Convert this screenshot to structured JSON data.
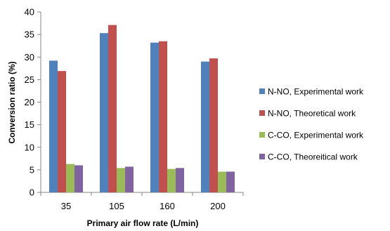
{
  "chart_data": {
    "type": "bar",
    "categories": [
      "35",
      "105",
      "160",
      "200"
    ],
    "series": [
      {
        "name": "N-NO, Experimental work",
        "color": "#4F81BD",
        "values": [
          29.2,
          35.3,
          33.2,
          29.0
        ]
      },
      {
        "name": "N-NO, Theoretical work",
        "color": "#C0504D",
        "values": [
          26.9,
          37.1,
          33.5,
          29.7
        ]
      },
      {
        "name": "C-CO, Experimental work",
        "color": "#9BBB59",
        "values": [
          6.3,
          5.4,
          5.2,
          4.6
        ]
      },
      {
        "name": "C-CO, Theoreitical work",
        "color": "#8064A2",
        "values": [
          6.0,
          5.7,
          5.4,
          4.6
        ]
      }
    ],
    "title": "",
    "xlabel": "Primary air flow rate (L/min)",
    "ylabel": "Conversion ratio (%)",
    "ylim": [
      0,
      40
    ],
    "yticks": [
      0,
      5,
      10,
      15,
      20,
      25,
      30,
      35,
      40
    ],
    "grid": false,
    "legend_position": "right"
  }
}
